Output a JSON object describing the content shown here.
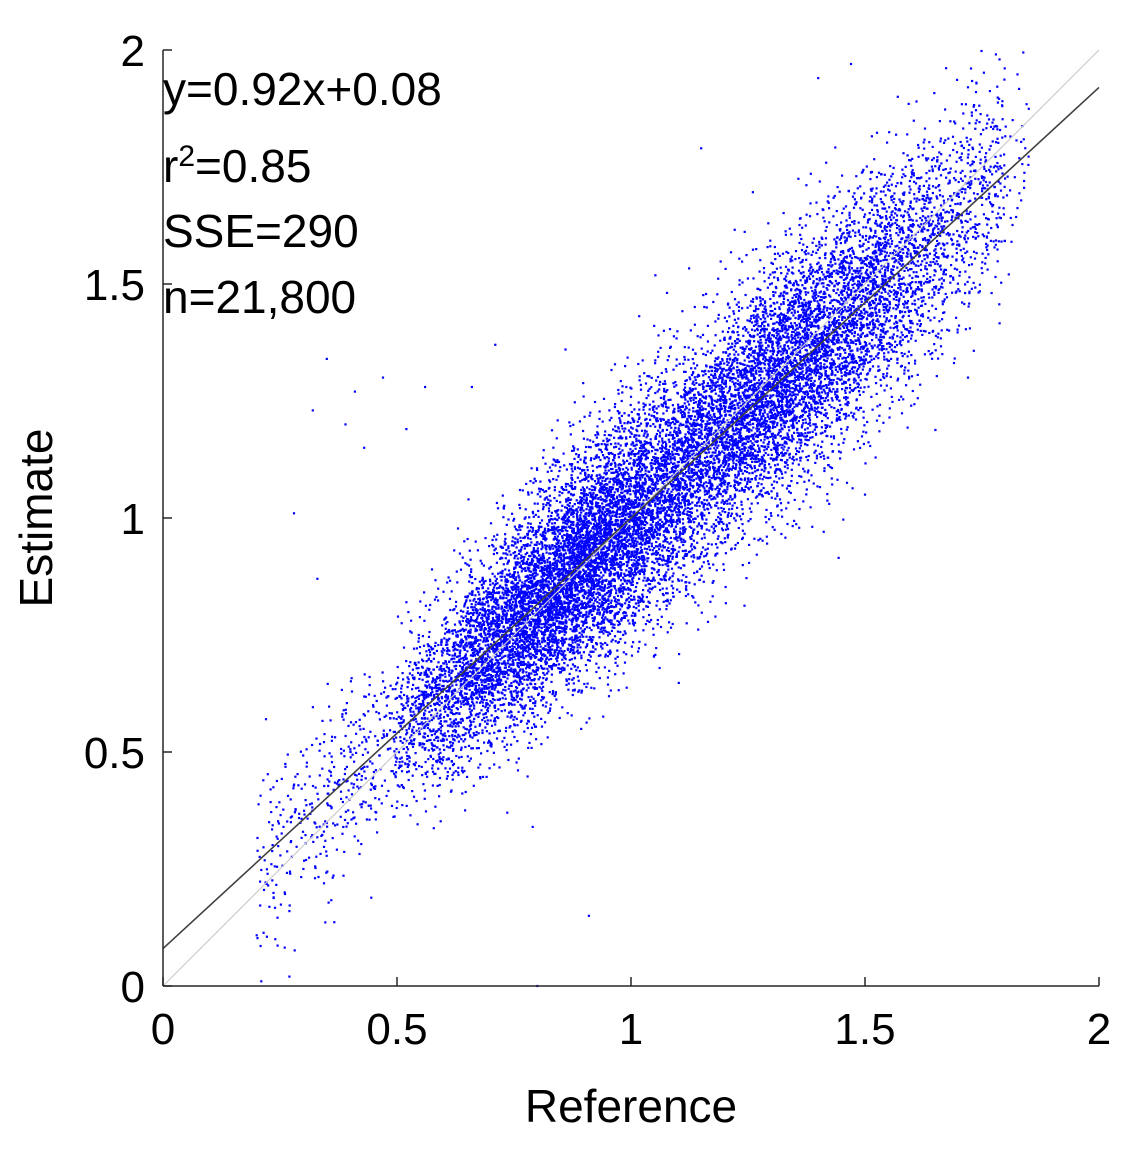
{
  "chart_data": {
    "type": "scatter",
    "title": "",
    "xlabel": "Reference",
    "ylabel": "Estimate",
    "xlim": [
      0,
      2
    ],
    "ylim": [
      0,
      2
    ],
    "xticks": [
      0,
      0.5,
      1,
      1.5,
      2
    ],
    "xtick_labels": [
      "0",
      "0.5",
      "1",
      "1.5",
      "2"
    ],
    "yticks": [
      0,
      0.5,
      1,
      1.5,
      2
    ],
    "ytick_labels": [
      "0",
      "0.5",
      "1",
      "1.5",
      "2"
    ],
    "grid": false,
    "legend": "none",
    "point_color": "#0000ff",
    "fit_line": {
      "slope": 0.92,
      "intercept": 0.08,
      "color": "#404040"
    },
    "identity_line": {
      "slope": 1,
      "intercept": 0,
      "color": "#cccccc"
    },
    "annotations": {
      "equation": "y=0.92x+0.08",
      "r2_prefix": "r",
      "r2_exponent": "2",
      "r2_value": "=0.85",
      "sse": "SSE=290",
      "n": "n=21,800"
    },
    "series": [
      {
        "n": 21800,
        "x_range": [
          0.2,
          1.85
        ],
        "y_range": [
          0.0,
          1.97
        ],
        "main_cluster": {
          "x_center": 0.95,
          "y_center": 0.95,
          "approx_fit_slope": 0.92,
          "approx_fit_intercept": 0.08
        },
        "outliers": [
          [
            0.35,
            1.34
          ],
          [
            0.32,
            1.23
          ],
          [
            0.28,
            1.01
          ],
          [
            0.33,
            0.87
          ],
          [
            0.41,
            1.27
          ],
          [
            0.47,
            1.3
          ],
          [
            0.43,
            1.15
          ],
          [
            0.39,
            1.2
          ],
          [
            0.52,
            1.19
          ],
          [
            0.22,
            0.57
          ],
          [
            0.21,
            0.01
          ],
          [
            0.27,
            0.02
          ],
          [
            0.79,
            0.34
          ],
          [
            0.91,
            0.15
          ],
          [
            0.8,
            0.0
          ],
          [
            1.4,
            1.94
          ],
          [
            1.47,
            1.97
          ],
          [
            1.57,
            1.9
          ],
          [
            1.61,
            1.89
          ],
          [
            1.15,
            1.79
          ],
          [
            1.5,
            1.05
          ],
          [
            1.64,
            1.35
          ],
          [
            1.72,
            1.3
          ],
          [
            1.81,
            1.7
          ],
          [
            1.84,
            1.72
          ],
          [
            0.71,
            1.37
          ],
          [
            0.56,
            1.28
          ],
          [
            0.66,
            1.28
          ],
          [
            0.86,
            1.36
          ],
          [
            0.99,
            1.28
          ],
          [
            0.26,
            0.2
          ],
          [
            0.24,
            0.1
          ],
          [
            0.27,
            0.16
          ],
          [
            0.3,
            0.25
          ],
          [
            0.23,
            0.42
          ]
        ]
      }
    ]
  }
}
